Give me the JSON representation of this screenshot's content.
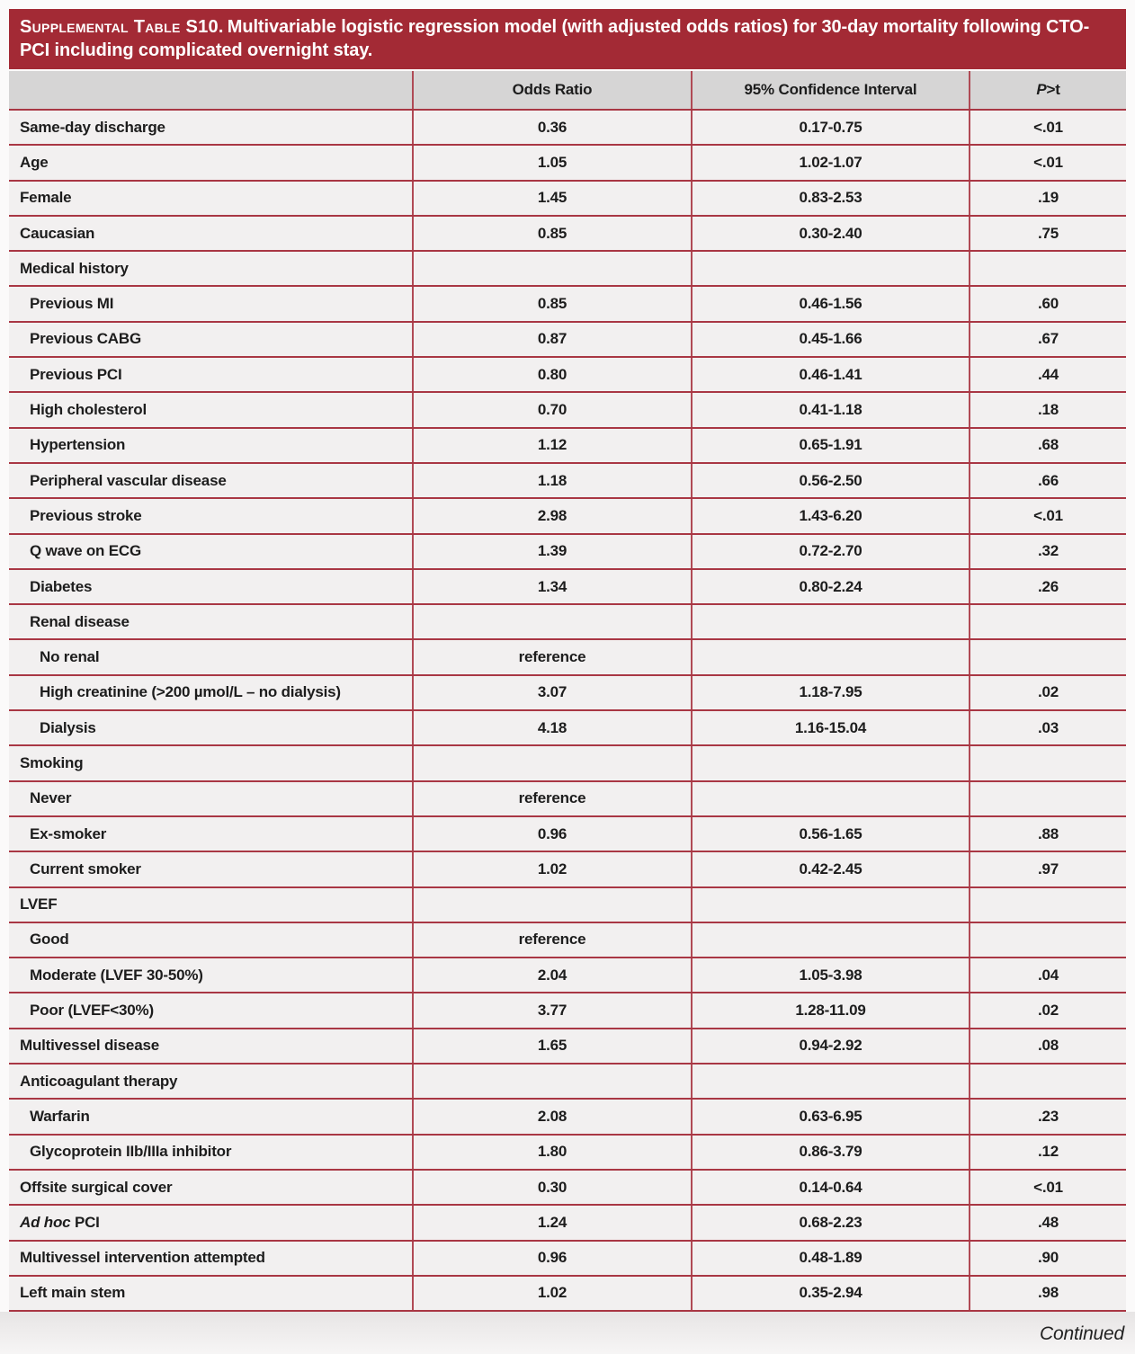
{
  "banner": {
    "title_smallcaps": "Supplemental Table S10.",
    "title_text": "Multivariable logistic regression model (with adjusted odds ratios) for 30-day mortality following CTO-PCI including complicated overnight stay."
  },
  "table": {
    "columns": [
      {
        "label": ""
      },
      {
        "label": "Odds Ratio"
      },
      {
        "label": "95% Confidence Interval"
      },
      {
        "label_italic": "P",
        "label_rest": ">t"
      }
    ],
    "rows": [
      {
        "label": "Same-day discharge",
        "indent": 0,
        "odds_ratio": "0.36",
        "ci": "0.17-0.75",
        "p": "<.01"
      },
      {
        "label": "Age",
        "indent": 0,
        "odds_ratio": "1.05",
        "ci": "1.02-1.07",
        "p": "<.01"
      },
      {
        "label": "Female",
        "indent": 0,
        "odds_ratio": "1.45",
        "ci": "0.83-2.53",
        "p": ".19"
      },
      {
        "label": "Caucasian",
        "indent": 0,
        "odds_ratio": "0.85",
        "ci": "0.30-2.40",
        "p": ".75"
      },
      {
        "label": "Medical history",
        "indent": 0,
        "odds_ratio": "",
        "ci": "",
        "p": ""
      },
      {
        "label": "Previous MI",
        "indent": 1,
        "odds_ratio": "0.85",
        "ci": "0.46-1.56",
        "p": ".60"
      },
      {
        "label": "Previous CABG",
        "indent": 1,
        "odds_ratio": "0.87",
        "ci": "0.45-1.66",
        "p": ".67"
      },
      {
        "label": "Previous PCI",
        "indent": 1,
        "odds_ratio": "0.80",
        "ci": "0.46-1.41",
        "p": ".44"
      },
      {
        "label": "High cholesterol",
        "indent": 1,
        "odds_ratio": "0.70",
        "ci": "0.41-1.18",
        "p": ".18"
      },
      {
        "label": "Hypertension",
        "indent": 1,
        "odds_ratio": "1.12",
        "ci": "0.65-1.91",
        "p": ".68"
      },
      {
        "label": "Peripheral vascular disease",
        "indent": 1,
        "odds_ratio": "1.18",
        "ci": "0.56-2.50",
        "p": ".66"
      },
      {
        "label": "Previous stroke",
        "indent": 1,
        "odds_ratio": "2.98",
        "ci": "1.43-6.20",
        "p": "<.01"
      },
      {
        "label": "Q wave on ECG",
        "indent": 1,
        "odds_ratio": "1.39",
        "ci": "0.72-2.70",
        "p": ".32"
      },
      {
        "label": "Diabetes",
        "indent": 1,
        "odds_ratio": "1.34",
        "ci": "0.80-2.24",
        "p": ".26"
      },
      {
        "label": "Renal disease",
        "indent": 1,
        "odds_ratio": "",
        "ci": "",
        "p": ""
      },
      {
        "label": "No renal",
        "indent": 2,
        "odds_ratio": "reference",
        "ci": "",
        "p": ""
      },
      {
        "label": "High creatinine (>200 µmol/L – no dialysis)",
        "indent": 2,
        "odds_ratio": "3.07",
        "ci": "1.18-7.95",
        "p": ".02"
      },
      {
        "label": "Dialysis",
        "indent": 2,
        "odds_ratio": "4.18",
        "ci": "1.16-15.04",
        "p": ".03"
      },
      {
        "label": "Smoking",
        "indent": 0,
        "odds_ratio": "",
        "ci": "",
        "p": ""
      },
      {
        "label": "Never",
        "indent": 1,
        "odds_ratio": "reference",
        "ci": "",
        "p": ""
      },
      {
        "label": "Ex-smoker",
        "indent": 1,
        "odds_ratio": "0.96",
        "ci": "0.56-1.65",
        "p": ".88"
      },
      {
        "label": "Current smoker",
        "indent": 1,
        "odds_ratio": "1.02",
        "ci": "0.42-2.45",
        "p": ".97"
      },
      {
        "label": "LVEF",
        "indent": 0,
        "odds_ratio": "",
        "ci": "",
        "p": ""
      },
      {
        "label": "Good",
        "indent": 1,
        "odds_ratio": "reference",
        "ci": "",
        "p": ""
      },
      {
        "label": "Moderate (LVEF 30-50%)",
        "indent": 1,
        "odds_ratio": "2.04",
        "ci": "1.05-3.98",
        "p": ".04"
      },
      {
        "label": "Poor (LVEF<30%)",
        "indent": 1,
        "odds_ratio": "3.77",
        "ci": "1.28-11.09",
        "p": ".02"
      },
      {
        "label": "Multivessel disease",
        "indent": 0,
        "odds_ratio": "1.65",
        "ci": "0.94-2.92",
        "p": ".08"
      },
      {
        "label": "Anticoagulant therapy",
        "indent": 0,
        "odds_ratio": "",
        "ci": "",
        "p": ""
      },
      {
        "label": "Warfarin",
        "indent": 1,
        "odds_ratio": "2.08",
        "ci": "0.63-6.95",
        "p": ".23"
      },
      {
        "label": "Glycoprotein IIb/IIIa inhibitor",
        "indent": 1,
        "odds_ratio": "1.80",
        "ci": "0.86-3.79",
        "p": ".12"
      },
      {
        "label": "Offsite surgical cover",
        "indent": 0,
        "odds_ratio": "0.30",
        "ci": "0.14-0.64",
        "p": "<.01"
      },
      {
        "label": "Ad hoc PCI",
        "indent": 0,
        "italic_prefix": "Ad hoc",
        "odds_ratio": "1.24",
        "ci": "0.68-2.23",
        "p": ".48"
      },
      {
        "label": "Multivessel intervention attempted",
        "indent": 0,
        "odds_ratio": "0.96",
        "ci": "0.48-1.89",
        "p": ".90"
      },
      {
        "label": "Left main stem",
        "indent": 0,
        "odds_ratio": "1.02",
        "ci": "0.35-2.94",
        "p": ".98"
      }
    ]
  },
  "footer": {
    "continued_label": "Continued"
  },
  "colors": {
    "banner_red": "#a32a35",
    "line_red": "#a93744",
    "divider_red": "#b04a55",
    "header_gray": "#d6d5d5",
    "row_bg": "#f2f0f0",
    "page_bg": "#fbfafa",
    "text_dark": "#1d1d1d"
  }
}
